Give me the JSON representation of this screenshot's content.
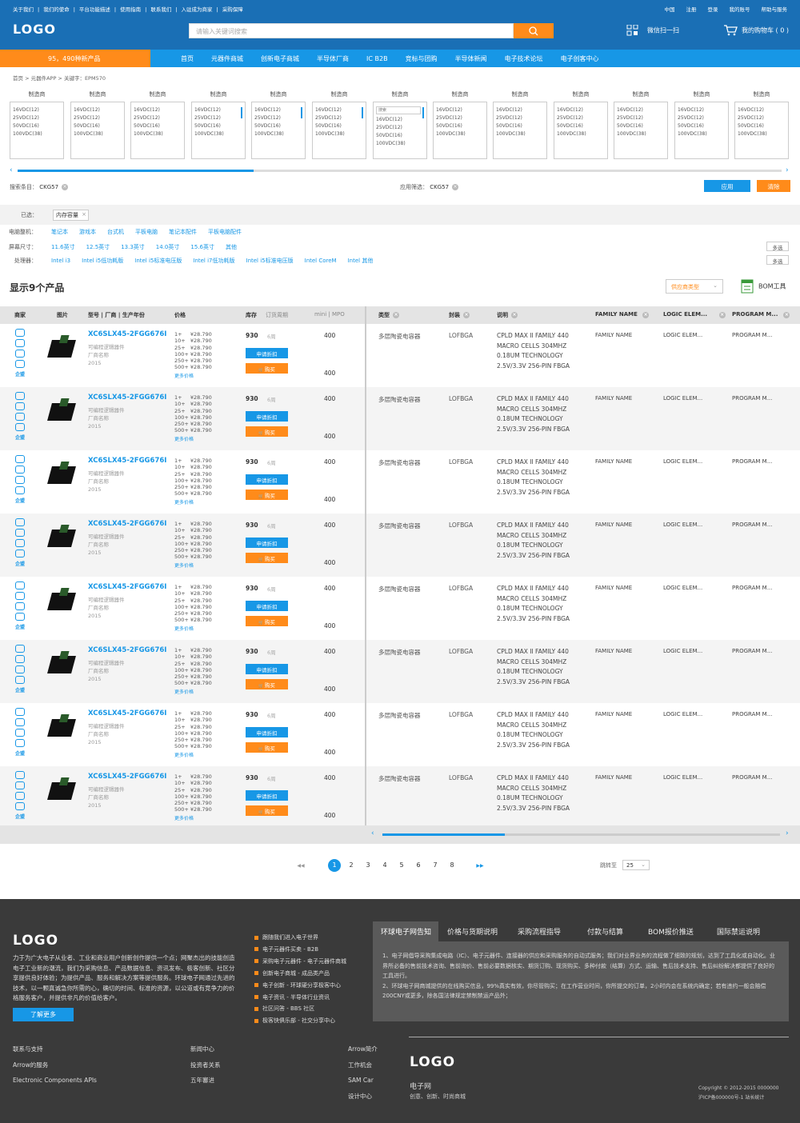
{
  "top": {
    "left_links": [
      "关于我们",
      "我们的使命",
      "平台功能描述",
      "使用指南",
      "联系我们",
      "入驻成为商家",
      "采购保障"
    ],
    "right_links": [
      "中国",
      "注册",
      "登录",
      "我的账号",
      "帮助与服务"
    ]
  },
  "logo": "LOGO",
  "search": {
    "placeholder": "请输入关键词搜索"
  },
  "wechat": "微信扫一扫",
  "cart": "我的购物车 ( 0 )",
  "newprod": "95，490种新产品",
  "nav": [
    "首页",
    "元器件商城",
    "创新电子商城",
    "半导体厂商",
    "IC B2B",
    "竞标与团购",
    "半导体新闻",
    "电子技术论坛",
    "电子创客中心"
  ],
  "breadcrumb": "首页 > 元器件APP > 关键字：EPM570",
  "maker_label": "制造商",
  "voltages": [
    "16VDC(12)",
    "25VDC(12)",
    "50VDC(16)",
    "100VDC(38)"
  ],
  "filter_search": "搜索",
  "search_cond_label": "搜索条目：",
  "search_cond": "CKG57",
  "apply_cond_label": "应用筛选：",
  "apply_cond": "CKG57",
  "apply": "应用",
  "clear": "清除",
  "selected_label": "已选：",
  "selected": "内存容量",
  "facets": [
    {
      "label": "电脑整机：",
      "opts": [
        "笔记本",
        "游戏本",
        "台式机",
        "平板电脑",
        "笔记本配件",
        "平板电脑配件"
      ]
    },
    {
      "label": "屏幕尺寸：",
      "opts": [
        "11.6英寸",
        "12.5英寸",
        "13.3英寸",
        "14.0英寸",
        "15.6英寸",
        "其他"
      ]
    },
    {
      "label": "处理器：",
      "opts": [
        "Intel i3",
        "Intel i5低功耗版",
        "Intel i5标准电压版",
        "Intel i7低功耗版",
        "Intel i5标准电压版",
        "Intel CoreM",
        "Intel 其他"
      ]
    }
  ],
  "multi": "多选",
  "shown": "显示9个产品",
  "vendor_type": "供应商类型",
  "bom": "BOM工具",
  "cols": [
    "商家",
    "图片",
    "型号 | 厂商 | 生产年份",
    "价格",
    "库存",
    "订货周期",
    "mini | MPO",
    "类型",
    "封装",
    "说明",
    "FAMILY NAME",
    "LOGIC ELEM...",
    "PROGRAM M..."
  ],
  "product": {
    "pn": "XC6SLX45-2FGG676I",
    "cat": "可编程逻辑器件",
    "mfr": "厂商名称",
    "year": "2015",
    "prices": "1+     ¥28.790\n10+   ¥28.790\n25+   ¥28.790\n100+ ¥28.790\n250+ ¥28.790\n500+ ¥28.790",
    "more": "更多价格",
    "stock": "930",
    "lead": "6周",
    "req": "申请折扣",
    "buy": "购买",
    "mini": "400",
    "mpo": "400",
    "type": "多层陶瓷电容器",
    "pkg": "LOFBGA",
    "desc": "CPLD MAX II FAMILY 440 MACRO CELLS 304MHZ 0.18UM TECHNOLOGY 2.5V/3.3V 256-PIN FBGA",
    "family": "FAMILY NAME",
    "logic": "LOGIC ELEM...",
    "prog": "PROGRAM M...",
    "badge": "企盟"
  },
  "pages": [
    "1",
    "2",
    "3",
    "4",
    "5",
    "6",
    "7",
    "8"
  ],
  "jump_label": "跳转至",
  "jump_val": "25",
  "footer": {
    "logo": "LOGO",
    "desc": "力于为广大电子从业者、工业和商业用户创新创作提供一个点；网聚杰出的技能创造电子工业新的潮流，我们为采购信息、产品数据信息、资讯发布、极客创新、社区分享提供良好体验；为提供产品、服务和解决方案等提供服务。环球电子网通过先进的技术，以一颗真诚急你所需的心，确切的时间、标准的资源，以公道或有竞争力的价格服务客户，并提供非凡的价值给客户。",
    "learn": "了解更多",
    "links": [
      "跟随我们进入电子世界",
      "电子元器件买卖 - B2B",
      "采购电子元器件 - 电子元器件商城",
      "创新电子商城 - 成品类产品",
      "电子创新 - 环球硬分享极客中心",
      "电子资讯 - 半导体行业资讯",
      "社区问答 - BBS 社区",
      "极客快俱乐部 - 社交分享中心"
    ],
    "tabs": [
      "环球电子网告知",
      "价格与货期说明",
      "采购流程指导",
      "付款与结算",
      "BOM报价推送",
      "国际禁运说明"
    ],
    "notice": "1、电子网倡导采购集成电路（IC）、电子元器件、连接器的供应和采购服务的自动式服务；我们对业界业务的流程做了细致的规划，达到了工具化或自动化。业界所必备的售前技术咨询、售前询价、售前必要数据核实、期货订购、现货购买、多种付款（结算）方式、运输、售后技术支持、售后纠纷解决都提供了良好的工具进行。\n2、环球电子网商城提供的在线购买信息，99%真实有效，你尽管购买；在工作营业时间，你所提交的订单，2小时内会在系统内确定；若有违约一般会赔偿200CNY或更多，除各国法律规定禁制禁运产品外；",
    "col1": [
      "联系与支持",
      "Arrow的服务",
      "Electronic Components APIs"
    ],
    "col2": [
      "新闻中心",
      "投资者关系",
      "五年審进"
    ],
    "col3": [
      "Arrow简介",
      "工作机会",
      "SAM Car",
      "设计中心"
    ],
    "site": "电子网",
    "slogan": "创意、创新、时尚商城",
    "copy1": "Copyright © 2012-2015 0000000",
    "copy2": "沪ICP备000000号-1   站长统计"
  },
  "colors": {
    "brand": "#1a6fb5",
    "accent": "#1797e6",
    "orange": "#ff8b1a",
    "footer": "#3a3a3a"
  }
}
